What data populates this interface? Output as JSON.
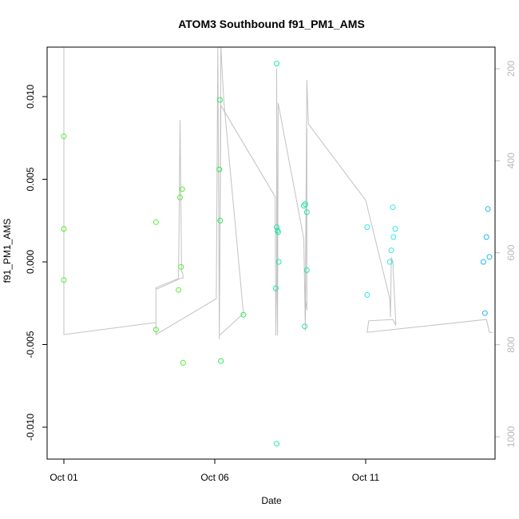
{
  "chart_data": {
    "type": "scatter",
    "title": "ATOM3 Southbound f91_PM1_AMS",
    "xlabel": "Date",
    "ylabel": "f91_PM1_AMS",
    "x_ticks": [
      {
        "label": "Oct 01",
        "day": 1
      },
      {
        "label": "Oct 06",
        "day": 6
      },
      {
        "label": "Oct 11",
        "day": 11
      }
    ],
    "xlim_days": [
      0.5,
      15.5
    ],
    "ylim": [
      -0.012,
      0.013
    ],
    "y_ticks": [
      "-0.010",
      "-0.005",
      "0.000",
      "0.005",
      "0.010"
    ],
    "y_tick_values": [
      -0.01,
      -0.005,
      0,
      0.005,
      0.01
    ],
    "y2_ticks": [
      "200",
      "400",
      "600",
      "800",
      "1000"
    ],
    "y2_tick_values": [
      200,
      400,
      600,
      800,
      1000
    ],
    "y2lim": [
      1030,
      150
    ],
    "grid": false,
    "colors": {
      "green": "#55ee33",
      "green2": "#2ee85a",
      "teal": "#22e8a0",
      "cyan": "#33e8e8",
      "blue": "#22b8e8",
      "line": "#c2c2c2"
    },
    "points": [
      {
        "x": 1.0,
        "y": 0.0076,
        "c": "green"
      },
      {
        "x": 1.0,
        "y": 0.002,
        "c": "green"
      },
      {
        "x": 1.0,
        "y": -0.0011,
        "c": "green"
      },
      {
        "x": 4.05,
        "y": 0.0024,
        "c": "green"
      },
      {
        "x": 4.05,
        "y": -0.0041,
        "c": "green"
      },
      {
        "x": 4.8,
        "y": -0.0017,
        "c": "green"
      },
      {
        "x": 4.85,
        "y": 0.0039,
        "c": "green"
      },
      {
        "x": 4.88,
        "y": -0.0003,
        "c": "green"
      },
      {
        "x": 4.92,
        "y": 0.0044,
        "c": "green"
      },
      {
        "x": 4.95,
        "y": -0.0061,
        "c": "green"
      },
      {
        "x": 6.15,
        "y": 0.0056,
        "c": "green2"
      },
      {
        "x": 6.17,
        "y": 0.0098,
        "c": "green2"
      },
      {
        "x": 6.18,
        "y": 0.0025,
        "c": "green2"
      },
      {
        "x": 6.2,
        "y": -0.006,
        "c": "green2"
      },
      {
        "x": 6.95,
        "y": -0.0032,
        "c": "green2"
      },
      {
        "x": 8.05,
        "y": 0.012,
        "c": "teal"
      },
      {
        "x": 8.05,
        "y": 0.0021,
        "c": "teal"
      },
      {
        "x": 8.08,
        "y": 0.0019,
        "c": "teal"
      },
      {
        "x": 8.1,
        "y": 0.0018,
        "c": "teal"
      },
      {
        "x": 8.02,
        "y": -0.0016,
        "c": "teal"
      },
      {
        "x": 8.12,
        "y": 0.0,
        "c": "teal"
      },
      {
        "x": 8.05,
        "y": -0.011,
        "c": "teal"
      },
      {
        "x": 8.95,
        "y": 0.0034,
        "c": "teal"
      },
      {
        "x": 9.0,
        "y": 0.0035,
        "c": "teal"
      },
      {
        "x": 9.05,
        "y": 0.003,
        "c": "teal"
      },
      {
        "x": 9.05,
        "y": -0.0005,
        "c": "teal"
      },
      {
        "x": 8.98,
        "y": -0.0039,
        "c": "teal"
      },
      {
        "x": 11.05,
        "y": 0.0021,
        "c": "cyan"
      },
      {
        "x": 11.05,
        "y": -0.002,
        "c": "cyan"
      },
      {
        "x": 11.8,
        "y": 0.0,
        "c": "cyan"
      },
      {
        "x": 11.85,
        "y": 0.0007,
        "c": "cyan"
      },
      {
        "x": 11.92,
        "y": 0.0015,
        "c": "cyan"
      },
      {
        "x": 11.9,
        "y": 0.0033,
        "c": "cyan"
      },
      {
        "x": 11.98,
        "y": 0.002,
        "c": "cyan"
      },
      {
        "x": 14.9,
        "y": 0.0,
        "c": "blue"
      },
      {
        "x": 15.0,
        "y": 0.0015,
        "c": "blue"
      },
      {
        "x": 15.05,
        "y": 0.0032,
        "c": "blue"
      },
      {
        "x": 15.1,
        "y": 0.0003,
        "c": "blue"
      },
      {
        "x": 14.95,
        "y": -0.0031,
        "c": "blue"
      }
    ],
    "track": [
      [
        1.0,
        150
      ],
      [
        1.0,
        778
      ],
      [
        4.0,
        752
      ],
      [
        4.05,
        754
      ],
      [
        4.05,
        676
      ],
      [
        4.8,
        656
      ],
      [
        4.85,
        312
      ],
      [
        4.9,
        640
      ],
      [
        4.95,
        648
      ],
      [
        4.95,
        655
      ],
      [
        4.9,
        655
      ],
      [
        4.05,
        680
      ],
      [
        4.05,
        778
      ],
      [
        6.05,
        700
      ],
      [
        6.1,
        150
      ],
      [
        6.15,
        788
      ],
      [
        6.2,
        150
      ],
      [
        6.3,
        270
      ],
      [
        6.95,
        732
      ],
      [
        6.15,
        780
      ],
      [
        6.2,
        280
      ],
      [
        8.0,
        478
      ],
      [
        8.02,
        780
      ],
      [
        8.05,
        660
      ],
      [
        8.05,
        200
      ],
      [
        8.08,
        780
      ],
      [
        8.1,
        275
      ],
      [
        8.95,
        570
      ],
      [
        9.0,
        770
      ],
      [
        9.05,
        330
      ],
      [
        9.05,
        725
      ],
      [
        9.0,
        700
      ],
      [
        9.05,
        225
      ],
      [
        9.1,
        320
      ],
      [
        11.0,
        486
      ],
      [
        11.8,
        700
      ],
      [
        11.82,
        740
      ],
      [
        11.85,
        610
      ],
      [
        11.9,
        620
      ],
      [
        12.0,
        758
      ],
      [
        11.9,
        745
      ],
      [
        11.1,
        748
      ],
      [
        11.05,
        772
      ],
      [
        11.05,
        773
      ],
      [
        15.0,
        745
      ],
      [
        15.1,
        773
      ],
      [
        15.2,
        773
      ]
    ]
  }
}
